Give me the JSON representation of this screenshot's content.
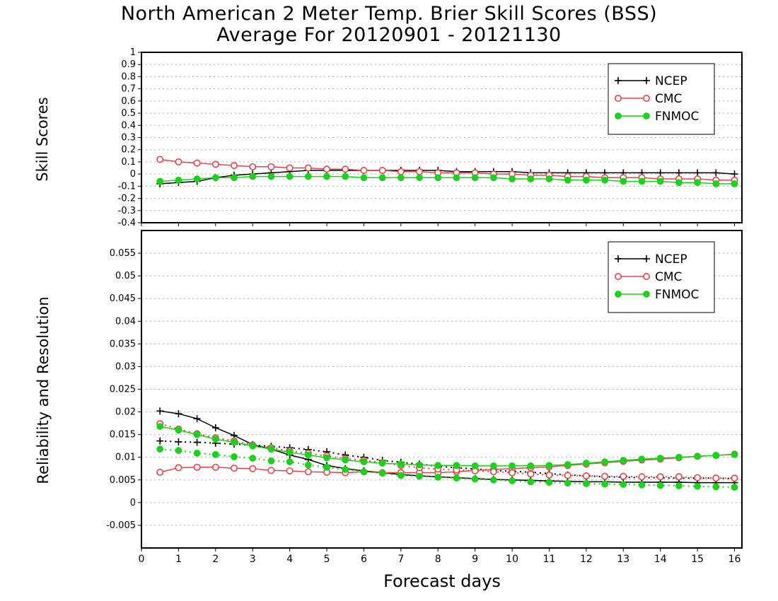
{
  "title_line1": "North American 2 Meter Temp. Brier Skill Scores (BSS)",
  "title_line2": "Average For 20120901 - 20121130",
  "xlabel": "Forecast days",
  "colors": {
    "NCEP": "#000000",
    "CMC": "#e8434a",
    "FNMOC": "#18d418",
    "grid": "#aaaaaa"
  },
  "chart_data": [
    {
      "type": "line",
      "ylabel": "Skill Scores",
      "xlim": [
        0,
        16.2
      ],
      "ylim": [
        -0.4,
        1.0
      ],
      "xticks": [
        "0",
        "1",
        "2",
        "3",
        "4",
        "5",
        "6",
        "7",
        "8",
        "9",
        "10",
        "11",
        "12",
        "13",
        "14",
        "15",
        "16"
      ],
      "yticks": [
        "-0.4",
        "-0.3",
        "-0.2",
        "-0.1",
        "0",
        "0.1",
        "0.2",
        "0.3",
        "0.4",
        "0.5",
        "0.6",
        "0.7",
        "0.8",
        "0.9",
        "1"
      ],
      "grid": true,
      "legend": {
        "position": "top-right",
        "entries": [
          "NCEP",
          "CMC",
          "FNMOC"
        ]
      },
      "x": [
        0.5,
        1,
        1.5,
        2,
        2.5,
        3,
        3.5,
        4,
        4.5,
        5,
        5.5,
        6,
        6.5,
        7,
        7.5,
        8,
        8.5,
        9,
        9.5,
        10,
        10.5,
        11,
        11.5,
        12,
        12.5,
        13,
        13.5,
        14,
        14.5,
        15,
        15.5,
        16
      ],
      "series": [
        {
          "name": "NCEP",
          "marker": "plus",
          "values": [
            -0.08,
            -0.07,
            -0.06,
            -0.03,
            -0.01,
            0.0,
            0.01,
            0.02,
            0.03,
            0.03,
            0.03,
            0.03,
            0.03,
            0.03,
            0.03,
            0.03,
            0.02,
            0.02,
            0.02,
            0.02,
            0.01,
            0.01,
            0.01,
            0.01,
            0.01,
            0.01,
            0.01,
            0.01,
            0.01,
            0.01,
            0.01,
            0.0
          ]
        },
        {
          "name": "CMC",
          "marker": "open-circle",
          "values": [
            0.12,
            0.1,
            0.09,
            0.08,
            0.07,
            0.06,
            0.06,
            0.05,
            0.05,
            0.04,
            0.04,
            0.03,
            0.03,
            0.02,
            0.02,
            0.01,
            0.01,
            0.01,
            0.0,
            0.0,
            -0.01,
            -0.01,
            -0.02,
            -0.02,
            -0.03,
            -0.03,
            -0.03,
            -0.04,
            -0.04,
            -0.04,
            -0.05,
            -0.05
          ]
        },
        {
          "name": "FNMOC",
          "marker": "filled-circle",
          "values": [
            -0.06,
            -0.05,
            -0.04,
            -0.03,
            -0.03,
            -0.02,
            -0.02,
            -0.02,
            -0.02,
            -0.02,
            -0.02,
            -0.03,
            -0.03,
            -0.03,
            -0.03,
            -0.03,
            -0.03,
            -0.03,
            -0.03,
            -0.04,
            -0.04,
            -0.04,
            -0.05,
            -0.05,
            -0.05,
            -0.06,
            -0.06,
            -0.06,
            -0.07,
            -0.07,
            -0.08,
            -0.08
          ]
        }
      ]
    },
    {
      "type": "line",
      "ylabel": "Reliability and Resolution",
      "xlim": [
        0,
        16.2
      ],
      "ylim": [
        -0.01,
        0.06
      ],
      "xticks": [
        "0",
        "1",
        "2",
        "3",
        "4",
        "5",
        "6",
        "7",
        "8",
        "9",
        "10",
        "11",
        "12",
        "13",
        "14",
        "15",
        "16"
      ],
      "yticks": [
        "-0.005",
        "0",
        "0.005",
        "0.01",
        "0.015",
        "0.02",
        "0.025",
        "0.03",
        "0.035",
        "0.04",
        "0.045",
        "0.05",
        "0.055"
      ],
      "grid": true,
      "legend": {
        "position": "top-right",
        "entries": [
          "NCEP",
          "CMC",
          "FNMOC"
        ]
      },
      "x": [
        0.5,
        1,
        1.5,
        2,
        2.5,
        3,
        3.5,
        4,
        4.5,
        5,
        5.5,
        6,
        6.5,
        7,
        7.5,
        8,
        8.5,
        9,
        9.5,
        10,
        10.5,
        11,
        11.5,
        12,
        12.5,
        13,
        13.5,
        14,
        14.5,
        15,
        15.5,
        16
      ],
      "series": [
        {
          "name": "NCEP",
          "component": "reliability",
          "line": "solid",
          "marker": "plus",
          "values": [
            0.0202,
            0.0196,
            0.0185,
            0.0165,
            0.0148,
            0.0128,
            0.0118,
            0.0105,
            0.0095,
            0.0082,
            0.0075,
            0.007,
            0.0066,
            0.0062,
            0.0059,
            0.0057,
            0.0055,
            0.0053,
            0.0051,
            0.005,
            0.0049,
            0.0048,
            0.0047,
            0.0046,
            0.0046,
            0.0045,
            0.0045,
            0.0045,
            0.0045,
            0.0044,
            0.0044,
            0.0044
          ]
        },
        {
          "name": "NCEP",
          "component": "resolution",
          "line": "dotted",
          "marker": "plus",
          "values": [
            0.0136,
            0.0134,
            0.0133,
            0.0131,
            0.0129,
            0.0127,
            0.0124,
            0.0121,
            0.0117,
            0.0112,
            0.0105,
            0.01,
            0.0093,
            0.0089,
            0.0085,
            0.008,
            0.0077,
            0.0074,
            0.0071,
            0.0069,
            0.0067,
            0.0064,
            0.0061,
            0.0059,
            0.0057,
            0.0056,
            0.0055,
            0.0055,
            0.0054,
            0.0054,
            0.0054,
            0.0053
          ]
        },
        {
          "name": "CMC",
          "component": "reliability",
          "line": "solid",
          "marker": "open-circle",
          "values": [
            0.0067,
            0.0077,
            0.0078,
            0.0078,
            0.0076,
            0.0075,
            0.0071,
            0.007,
            0.0068,
            0.0067,
            0.0066,
            0.0068,
            0.0066,
            0.0066,
            0.0066,
            0.0066,
            0.0068,
            0.0071,
            0.0073,
            0.0075,
            0.0077,
            0.0079,
            0.0082,
            0.0085,
            0.0088,
            0.0091,
            0.0094,
            0.0096,
            0.0099,
            0.0102,
            0.0104,
            0.0107
          ]
        },
        {
          "name": "CMC",
          "component": "resolution",
          "line": "dotted",
          "marker": "open-circle",
          "values": [
            0.0174,
            0.0162,
            0.0152,
            0.0143,
            0.0136,
            0.0127,
            0.0121,
            0.0114,
            0.0109,
            0.0103,
            0.0097,
            0.0093,
            0.0088,
            0.0082,
            0.0077,
            0.0074,
            0.0072,
            0.007,
            0.0068,
            0.0066,
            0.0063,
            0.0061,
            0.006,
            0.0059,
            0.0058,
            0.0058,
            0.0057,
            0.0057,
            0.0057,
            0.0055,
            0.0054,
            0.0054
          ]
        },
        {
          "name": "FNMOC",
          "component": "reliability",
          "line": "solid",
          "marker": "filled-circle",
          "values": [
            0.0168,
            0.016,
            0.015,
            0.014,
            0.0133,
            0.0125,
            0.0118,
            0.0111,
            0.0105,
            0.0099,
            0.0094,
            0.009,
            0.0087,
            0.0085,
            0.0083,
            0.0082,
            0.0082,
            0.0081,
            0.0081,
            0.0081,
            0.0081,
            0.0082,
            0.0084,
            0.0087,
            0.009,
            0.0093,
            0.0096,
            0.0098,
            0.01,
            0.0102,
            0.0104,
            0.0106
          ]
        },
        {
          "name": "FNMOC",
          "component": "resolution",
          "line": "dotted",
          "marker": "filled-circle",
          "values": [
            0.0118,
            0.0115,
            0.0109,
            0.0106,
            0.0101,
            0.0098,
            0.0092,
            0.009,
            0.0083,
            0.0078,
            0.0073,
            0.0068,
            0.0065,
            0.006,
            0.0058,
            0.0056,
            0.0054,
            0.0052,
            0.005,
            0.0048,
            0.0046,
            0.0045,
            0.0043,
            0.0042,
            0.0041,
            0.004,
            0.0039,
            0.0038,
            0.0037,
            0.0036,
            0.0035,
            0.0034
          ]
        }
      ]
    }
  ]
}
